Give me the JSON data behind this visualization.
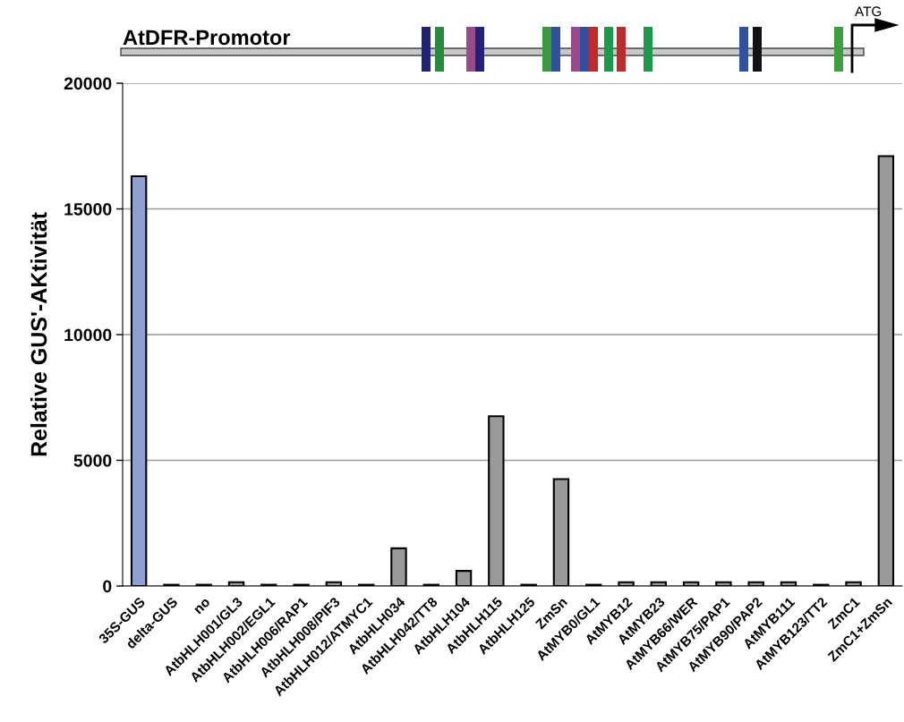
{
  "chart_data": {
    "type": "bar",
    "title": "AtDFR-Promotor",
    "ylabel": "Relative GUS'-AKtivität",
    "annotations": [
      "ATG"
    ],
    "categories": [
      "35S-GUS",
      "delta-GUS",
      "no",
      "AtbHLH001/GL3",
      "AtbHLH002/EGL1",
      "AtbHLH006/RAP1",
      "AtbHLH008/PIF3",
      "AtbHLH012/ATMYC1",
      "AtbHLH034",
      "AtbHLH042/TT8",
      "AtbHLH104",
      "AtbHLH115",
      "AtbHLH125",
      "ZmSn",
      "AtMYB0/GL1",
      "AtMYB12",
      "AtMYB23",
      "AtMYB66/WER",
      "AtMYB75/PAP1",
      "AtMYB90/PAP2",
      "AtMYB111",
      "AtMYB123/TT2",
      "ZmC1",
      "ZmC1+ZmSn"
    ],
    "values": [
      16300,
      50,
      50,
      150,
      50,
      50,
      150,
      50,
      1500,
      50,
      600,
      6750,
      50,
      4250,
      50,
      150,
      150,
      150,
      150,
      150,
      150,
      50,
      150,
      17100
    ],
    "colors": [
      "#8f9fd2",
      "#999999",
      "#999999",
      "#999999",
      "#999999",
      "#999999",
      "#999999",
      "#999999",
      "#999999",
      "#999999",
      "#999999",
      "#999999",
      "#999999",
      "#999999",
      "#999999",
      "#999999",
      "#999999",
      "#999999",
      "#999999",
      "#999999",
      "#999999",
      "#999999",
      "#999999",
      "#999999"
    ],
    "ylim": [
      0,
      20000
    ],
    "yticks": [
      0,
      5000,
      10000,
      15000,
      20000
    ],
    "grid": "y",
    "legend": false
  }
}
